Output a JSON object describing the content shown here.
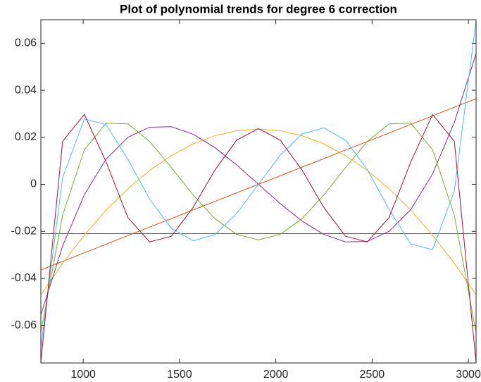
{
  "chart_data": {
    "type": "line",
    "title": "Plot of polynomial trends for degree 6 correction",
    "x": [
      780,
      893,
      1006,
      1119,
      1232,
      1345,
      1458,
      1571,
      1684,
      1797,
      1910,
      2023,
      2136,
      2249,
      2362,
      2475,
      2588,
      2701,
      2814,
      2927,
      3040
    ],
    "series": [
      {
        "color": "#0072BD",
        "values": [
          -0.021,
          -0.021,
          -0.021,
          -0.021,
          -0.021,
          -0.021,
          -0.021,
          -0.021,
          -0.021,
          -0.021,
          -0.021,
          -0.021,
          -0.021,
          -0.021,
          -0.021,
          -0.021,
          -0.021,
          -0.021,
          -0.021,
          -0.021,
          -0.021
        ]
      },
      {
        "color": "#D95319",
        "values": [
          -0.0364,
          -0.0328,
          -0.0291,
          -0.0255,
          -0.0218,
          -0.0182,
          -0.0146,
          -0.0109,
          -0.0073,
          -0.0036,
          0,
          0.0036,
          0.0073,
          0.0109,
          0.0146,
          0.0182,
          0.0218,
          0.0255,
          0.0291,
          0.0328,
          0.0364
        ]
      },
      {
        "color": "#EDB120",
        "values": [
          -0.047,
          -0.0336,
          -0.0216,
          -0.011,
          -0.0019,
          0.0059,
          0.0122,
          0.0172,
          0.0207,
          0.0228,
          0.0235,
          0.0228,
          0.0207,
          0.0172,
          0.0122,
          0.0059,
          -0.0019,
          -0.011,
          -0.0216,
          -0.0336,
          -0.047
        ]
      },
      {
        "color": "#7E2F8E",
        "values": [
          -0.0556,
          -0.0263,
          -0.0044,
          0.0107,
          0.02,
          0.0243,
          0.0245,
          0.0213,
          0.0156,
          0.0082,
          0,
          -0.0082,
          -0.0156,
          -0.0213,
          -0.0245,
          -0.0243,
          -0.02,
          -0.0107,
          0.0044,
          0.0263,
          0.0556
        ]
      },
      {
        "color": "#77AC30",
        "values": [
          -0.063,
          -0.0131,
          0.0147,
          0.026,
          0.0257,
          0.0182,
          0.0071,
          -0.0046,
          -0.0146,
          -0.0213,
          -0.0236,
          -0.0213,
          -0.0146,
          -0.0046,
          0.0071,
          0.0182,
          0.0257,
          0.026,
          0.0147,
          -0.0131,
          -0.063
        ]
      },
      {
        "color": "#4DBEEE",
        "values": [
          -0.0696,
          0.0029,
          0.0278,
          0.0254,
          0.0106,
          -0.0063,
          -0.0188,
          -0.024,
          -0.0214,
          -0.0124,
          0,
          0.0124,
          0.0214,
          0.024,
          0.0188,
          0.0063,
          -0.0106,
          -0.0254,
          -0.0278,
          -0.0029,
          0.0696
        ]
      },
      {
        "color": "#A2142F",
        "values": [
          -0.0757,
          0.0183,
          0.0297,
          0.0095,
          -0.0142,
          -0.0245,
          -0.0221,
          -0.0098,
          0.0061,
          0.0188,
          0.0237,
          0.0188,
          0.0061,
          -0.0098,
          -0.0221,
          -0.0245,
          -0.0142,
          0.0095,
          0.0297,
          0.0183,
          -0.0757
        ]
      }
    ],
    "xlim": [
      780,
      3040
    ],
    "ylim": [
      -0.076,
      0.07
    ],
    "xticks": [
      1000,
      1500,
      2000,
      2500,
      3000
    ],
    "yticks": [
      -0.06,
      -0.04,
      -0.02,
      0,
      0.02,
      0.04,
      0.06
    ],
    "grid": false
  }
}
